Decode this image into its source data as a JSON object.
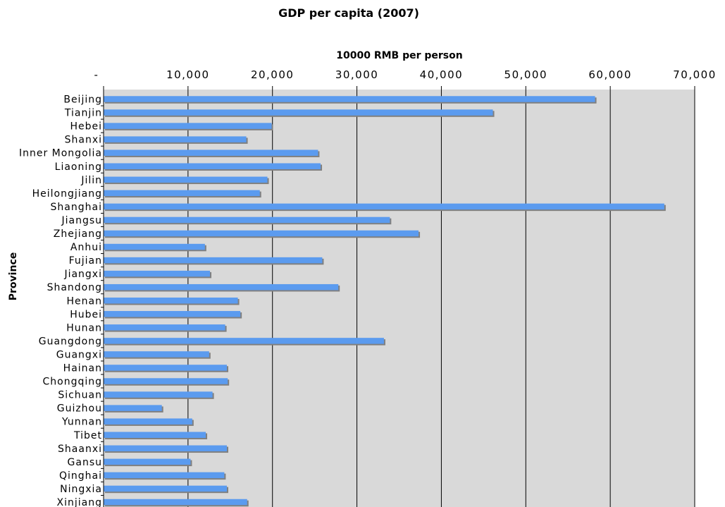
{
  "chart_data": {
    "type": "bar",
    "orientation": "horizontal",
    "title": "GDP per capita (2007)",
    "xlabel": "10000 RMB per person",
    "ylabel": "Province",
    "xlim": [
      0,
      70000
    ],
    "x_ticks": [
      0,
      10000,
      20000,
      30000,
      40000,
      50000,
      60000,
      70000
    ],
    "x_tick_labels": [
      "-",
      "10,000",
      "20,000",
      "30,000",
      "40,000",
      "50,000",
      "60,000",
      "70,000"
    ],
    "x_axis_position": "top",
    "grid": true,
    "plot_background": "#d9d9d9",
    "bar_color": "#5b9bef",
    "bar_shadow_color": "#808080",
    "categories": [
      "Beijing",
      "Tianjin",
      "Hebei",
      "Shanxi",
      "Inner Mongolia",
      "Liaoning",
      "Jilin",
      "Heilongjiang",
      "Shanghai",
      "Jiangsu",
      "Zhejiang",
      "Anhui",
      "Fujian",
      "Jiangxi",
      "Shandong",
      "Henan",
      "Hubei",
      "Hunan",
      "Guangdong",
      "Guangxi",
      "Hainan",
      "Chongqing",
      "Sichuan",
      "Guizhou",
      "Yunnan",
      "Tibet",
      "Shaanxi",
      "Gansu",
      "Qinghai",
      "Ningxia",
      "Xinjiang"
    ],
    "values": [
      58200,
      46100,
      19900,
      16900,
      25400,
      25700,
      19400,
      18500,
      66400,
      33900,
      37300,
      12000,
      25900,
      12600,
      27800,
      15900,
      16200,
      14400,
      33200,
      12500,
      14600,
      14700,
      12900,
      6900,
      10500,
      12100,
      14600,
      10300,
      14300,
      14600,
      17000
    ]
  }
}
